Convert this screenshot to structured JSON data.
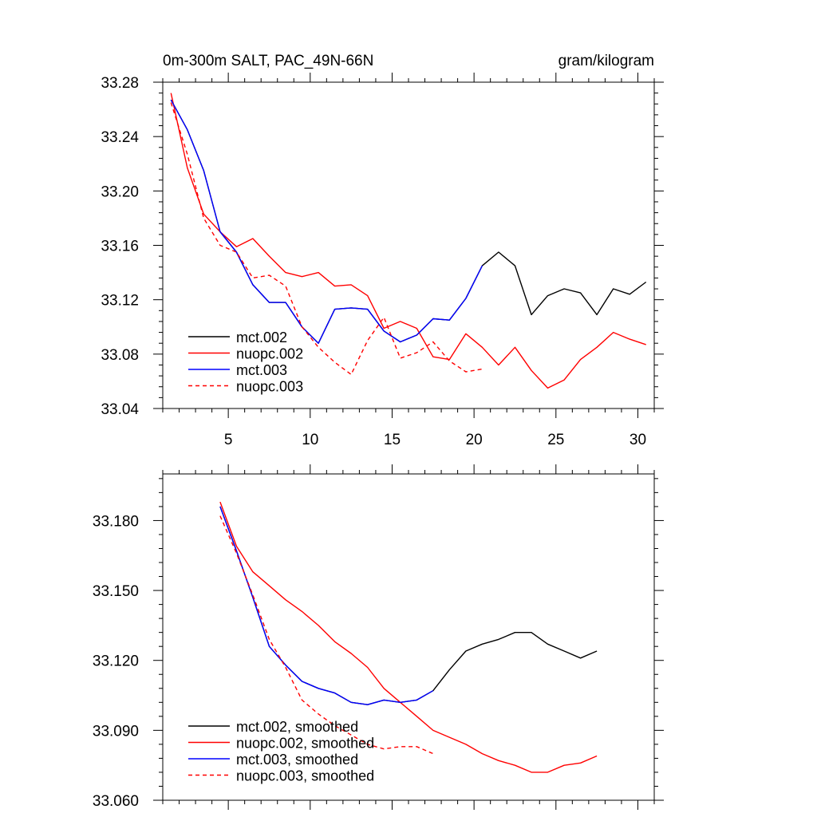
{
  "chart_data": [
    {
      "type": "line",
      "title_left": "0m-300m SALT, PAC_49N-66N",
      "title_right": "gram/kilogram",
      "xlim": [
        1,
        31
      ],
      "ylim": [
        33.04,
        33.28
      ],
      "xticks": [
        5,
        10,
        15,
        20,
        25,
        30
      ],
      "yticks": [
        33.04,
        33.08,
        33.12,
        33.16,
        33.2,
        33.24,
        33.28
      ],
      "ytick_labels": [
        "33.04",
        "33.08",
        "33.12",
        "33.16",
        "33.20",
        "33.24",
        "33.28"
      ],
      "xtick_labels": [
        "5",
        "10",
        "15",
        "20",
        "25",
        "30"
      ],
      "show_xtick_labels": true,
      "series": [
        {
          "name": "mct.002",
          "color": "#000000",
          "dash": false,
          "x": [
            1.5,
            2.5,
            3.5,
            4.5,
            5.5,
            6.5,
            7.5,
            8.5,
            9.5,
            10.5,
            11.5,
            12.5,
            13.5,
            14.5,
            15.5,
            16.5,
            17.5,
            18.5,
            19.5,
            20.5,
            21.5,
            22.5,
            23.5,
            24.5,
            25.5,
            26.5,
            27.5,
            28.5,
            29.5,
            30.5
          ],
          "y": [
            33.267,
            33.245,
            33.215,
            33.17,
            33.155,
            33.131,
            33.118,
            33.118,
            33.1,
            33.088,
            33.113,
            33.114,
            33.113,
            33.097,
            33.089,
            33.094,
            33.106,
            33.105,
            33.121,
            33.145,
            33.155,
            33.145,
            33.109,
            33.123,
            33.128,
            33.125,
            33.109,
            33.128,
            33.124,
            33.133
          ]
        },
        {
          "name": "nuopc.002",
          "color": "#ff0000",
          "dash": false,
          "x": [
            1.5,
            2.5,
            3.5,
            4.5,
            5.5,
            6.5,
            7.5,
            8.5,
            9.5,
            10.5,
            11.5,
            12.5,
            13.5,
            14.5,
            15.5,
            16.5,
            17.5,
            18.5,
            19.5,
            20.5,
            21.5,
            22.5,
            23.5,
            24.5,
            25.5,
            26.5,
            27.5,
            28.5,
            29.5,
            30.5
          ],
          "y": [
            33.272,
            33.217,
            33.183,
            33.17,
            33.159,
            33.165,
            33.152,
            33.14,
            33.137,
            33.14,
            33.13,
            33.131,
            33.123,
            33.099,
            33.104,
            33.099,
            33.078,
            33.076,
            33.095,
            33.085,
            33.072,
            33.085,
            33.068,
            33.055,
            33.061,
            33.076,
            33.085,
            33.096,
            33.091,
            33.087
          ]
        },
        {
          "name": "mct.003",
          "color": "#0000ff",
          "dash": false,
          "x": [
            1.5,
            2.5,
            3.5,
            4.5,
            5.5,
            6.5,
            7.5,
            8.5,
            9.5,
            10.5,
            11.5,
            12.5,
            13.5,
            14.5,
            15.5,
            16.5,
            17.5,
            18.5,
            19.5,
            20.5
          ],
          "y": [
            33.267,
            33.245,
            33.215,
            33.17,
            33.155,
            33.131,
            33.118,
            33.118,
            33.1,
            33.088,
            33.113,
            33.114,
            33.113,
            33.097,
            33.089,
            33.094,
            33.106,
            33.105,
            33.121,
            33.145
          ]
        },
        {
          "name": "nuopc.003",
          "color": "#ff0000",
          "dash": true,
          "x": [
            1.5,
            2.5,
            3.5,
            4.5,
            5.5,
            6.5,
            7.5,
            8.5,
            9.5,
            10.5,
            11.5,
            12.5,
            13.5,
            14.5,
            15.5,
            16.5,
            17.5,
            18.5,
            19.5,
            20.5
          ],
          "y": [
            33.265,
            33.227,
            33.18,
            33.16,
            33.155,
            33.136,
            33.138,
            33.13,
            33.1,
            33.085,
            33.074,
            33.065,
            33.09,
            33.107,
            33.077,
            33.081,
            33.089,
            33.075,
            33.067,
            33.069
          ]
        }
      ],
      "legend": {
        "placement": "bottom-left"
      }
    },
    {
      "type": "line",
      "title_left": "",
      "title_right": "",
      "xlim": [
        1,
        31
      ],
      "ylim": [
        33.06,
        33.2
      ],
      "xticks": [
        5,
        10,
        15,
        20,
        25,
        30
      ],
      "yticks": [
        33.06,
        33.09,
        33.12,
        33.15,
        33.18
      ],
      "ytick_labels": [
        "33.060",
        "33.090",
        "33.120",
        "33.150",
        "33.180"
      ],
      "xtick_labels": [],
      "show_xtick_labels": false,
      "series": [
        {
          "name": "mct.002, smoothed",
          "color": "#000000",
          "dash": false,
          "x": [
            4.5,
            5.5,
            6.5,
            7.5,
            8.5,
            9.5,
            10.5,
            11.5,
            12.5,
            13.5,
            14.5,
            15.5,
            16.5,
            17.5,
            18.5,
            19.5,
            20.5,
            21.5,
            22.5,
            23.5,
            24.5,
            25.5,
            26.5,
            27.5
          ],
          "y": [
            33.186,
            33.167,
            33.147,
            33.126,
            33.118,
            33.111,
            33.108,
            33.106,
            33.102,
            33.101,
            33.103,
            33.102,
            33.103,
            33.107,
            33.116,
            33.124,
            33.127,
            33.129,
            33.132,
            33.132,
            33.127,
            33.124,
            33.121,
            33.124
          ]
        },
        {
          "name": "nuopc.002, smoothed",
          "color": "#ff0000",
          "dash": false,
          "x": [
            4.5,
            5.5,
            6.5,
            7.5,
            8.5,
            9.5,
            10.5,
            11.5,
            12.5,
            13.5,
            14.5,
            15.5,
            16.5,
            17.5,
            18.5,
            19.5,
            20.5,
            21.5,
            22.5,
            23.5,
            24.5,
            25.5,
            26.5,
            27.5
          ],
          "y": [
            33.188,
            33.169,
            33.158,
            33.152,
            33.146,
            33.141,
            33.135,
            33.128,
            33.123,
            33.117,
            33.108,
            33.102,
            33.096,
            33.09,
            33.087,
            33.084,
            33.08,
            33.077,
            33.075,
            33.072,
            33.072,
            33.075,
            33.076,
            33.079
          ]
        },
        {
          "name": "mct.003, smoothed",
          "color": "#0000ff",
          "dash": false,
          "x": [
            4.5,
            5.5,
            6.5,
            7.5,
            8.5,
            9.5,
            10.5,
            11.5,
            12.5,
            13.5,
            14.5,
            15.5,
            16.5,
            17.5
          ],
          "y": [
            33.186,
            33.167,
            33.147,
            33.126,
            33.118,
            33.111,
            33.108,
            33.106,
            33.102,
            33.101,
            33.103,
            33.102,
            33.103,
            33.107
          ]
        },
        {
          "name": "nuopc.003, smoothed",
          "color": "#ff0000",
          "dash": true,
          "x": [
            4.5,
            5.5,
            6.5,
            7.5,
            8.5,
            9.5,
            10.5,
            11.5,
            12.5,
            13.5,
            14.5,
            15.5,
            16.5,
            17.5
          ],
          "y": [
            33.182,
            33.166,
            33.148,
            33.129,
            33.117,
            33.103,
            33.097,
            33.092,
            33.088,
            33.084,
            33.082,
            33.083,
            33.083,
            33.08
          ]
        }
      ],
      "legend": {
        "placement": "bottom-left"
      }
    }
  ]
}
